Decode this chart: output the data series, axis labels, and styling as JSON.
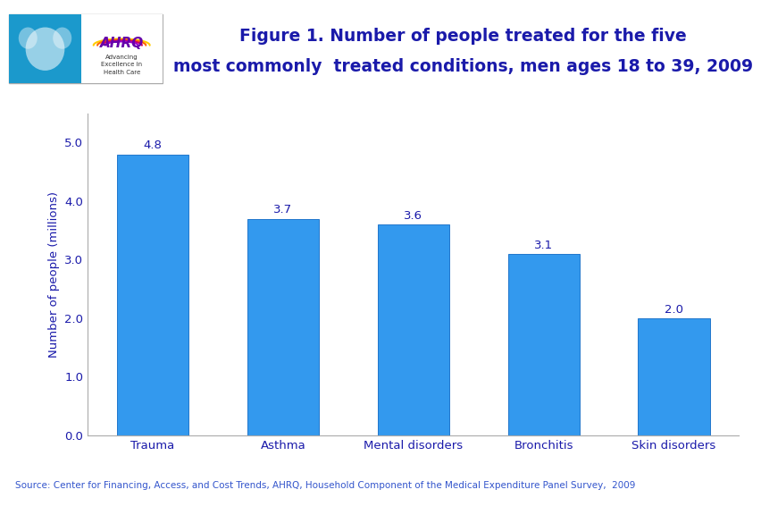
{
  "categories": [
    "Trauma",
    "Asthma",
    "Mental disorders",
    "Bronchitis",
    "Skin disorders"
  ],
  "values": [
    4.8,
    3.7,
    3.6,
    3.1,
    2.0
  ],
  "bar_color": "#3399EE",
  "bar_edgecolor": "#2277cc",
  "title_line1": "Figure 1. Number of people treated for the five",
  "title_line2": "most commonly  treated conditions, men ages 18 to 39, 2009",
  "title_color": "#1a1aaa",
  "ylabel": "Number of people (millions)",
  "ylabel_color": "#1a1aaa",
  "ylim": [
    0,
    5.5
  ],
  "yticks": [
    0.0,
    1.0,
    2.0,
    3.0,
    4.0,
    5.0
  ],
  "source_text": "Source: Center for Financing, Access, and Cost Trends, AHRQ, Household Component of the Medical Expenditure Panel Survey,  2009",
  "source_color": "#3355cc",
  "label_color": "#1a1aaa",
  "tick_color": "#1a1aaa",
  "top_bar_color": "#1a1aaa",
  "divider_bar_color": "#000099",
  "bottom_border_color": "#000099",
  "background_color": "#ffffff",
  "title_fontsize": 13.5,
  "label_fontsize": 9.5,
  "ylabel_fontsize": 9.5,
  "source_fontsize": 7.5,
  "tick_fontsize": 9.5
}
